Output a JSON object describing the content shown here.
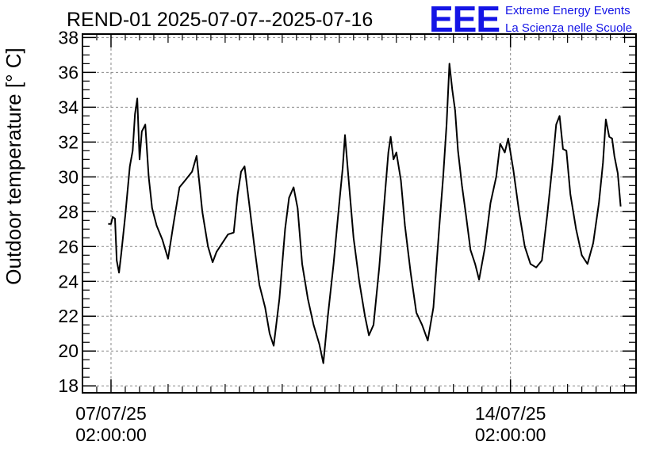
{
  "chart_data": {
    "type": "line",
    "title": "REND-01 2025-07-07--2025-07-16",
    "xlabel": "",
    "ylabel": "Outdoor temperature [° C]",
    "ylim": [
      17.6,
      38.2
    ],
    "yticks": [
      18,
      20,
      22,
      24,
      26,
      28,
      30,
      32,
      34,
      36,
      38
    ],
    "xlim_days": [
      -0.5,
      9.2
    ],
    "xticks": [
      {
        "day": 0,
        "label_date": "07/07/25",
        "label_time": "02:00:00"
      },
      {
        "day": 7,
        "label_date": "14/07/25",
        "label_time": "02:00:00"
      }
    ],
    "grid": true,
    "series": [
      {
        "color": "#000000",
        "points": [
          [
            -0.05,
            27.3
          ],
          [
            0.0,
            27.3
          ],
          [
            0.03,
            27.7
          ],
          [
            0.07,
            27.6
          ],
          [
            0.1,
            25.2
          ],
          [
            0.14,
            24.5
          ],
          [
            0.18,
            25.6
          ],
          [
            0.25,
            27.8
          ],
          [
            0.33,
            30.6
          ],
          [
            0.38,
            31.5
          ],
          [
            0.42,
            33.6
          ],
          [
            0.46,
            34.5
          ],
          [
            0.5,
            31.0
          ],
          [
            0.54,
            32.6
          ],
          [
            0.6,
            33.0
          ],
          [
            0.66,
            30.0
          ],
          [
            0.72,
            28.2
          ],
          [
            0.8,
            27.2
          ],
          [
            0.9,
            26.4
          ],
          [
            1.0,
            25.3
          ],
          [
            1.1,
            27.4
          ],
          [
            1.2,
            29.4
          ],
          [
            1.3,
            29.8
          ],
          [
            1.42,
            30.3
          ],
          [
            1.5,
            31.2
          ],
          [
            1.6,
            28.0
          ],
          [
            1.7,
            26.0
          ],
          [
            1.78,
            25.1
          ],
          [
            1.85,
            25.7
          ],
          [
            1.95,
            26.2
          ],
          [
            2.05,
            26.7
          ],
          [
            2.15,
            26.8
          ],
          [
            2.22,
            29.0
          ],
          [
            2.28,
            30.3
          ],
          [
            2.34,
            30.6
          ],
          [
            2.42,
            28.5
          ],
          [
            2.52,
            25.8
          ],
          [
            2.6,
            23.8
          ],
          [
            2.7,
            22.5
          ],
          [
            2.78,
            21.0
          ],
          [
            2.85,
            20.3
          ],
          [
            2.95,
            23.0
          ],
          [
            3.05,
            27.0
          ],
          [
            3.12,
            28.8
          ],
          [
            3.2,
            29.4
          ],
          [
            3.27,
            28.2
          ],
          [
            3.35,
            25.0
          ],
          [
            3.45,
            23.0
          ],
          [
            3.55,
            21.5
          ],
          [
            3.65,
            20.4
          ],
          [
            3.72,
            19.3
          ],
          [
            3.8,
            22.0
          ],
          [
            3.9,
            25.0
          ],
          [
            4.0,
            28.5
          ],
          [
            4.06,
            30.5
          ],
          [
            4.1,
            32.4
          ],
          [
            4.16,
            30.0
          ],
          [
            4.25,
            26.5
          ],
          [
            4.35,
            24.0
          ],
          [
            4.45,
            22.0
          ],
          [
            4.52,
            20.9
          ],
          [
            4.6,
            21.5
          ],
          [
            4.7,
            24.8
          ],
          [
            4.8,
            29.0
          ],
          [
            4.86,
            31.4
          ],
          [
            4.9,
            32.3
          ],
          [
            4.95,
            31.0
          ],
          [
            5.0,
            31.4
          ],
          [
            5.08,
            29.8
          ],
          [
            5.15,
            27.2
          ],
          [
            5.25,
            24.5
          ],
          [
            5.35,
            22.2
          ],
          [
            5.45,
            21.5
          ],
          [
            5.55,
            20.6
          ],
          [
            5.65,
            22.5
          ],
          [
            5.75,
            27.0
          ],
          [
            5.82,
            30.0
          ],
          [
            5.88,
            33.0
          ],
          [
            5.93,
            36.5
          ],
          [
            5.98,
            35.0
          ],
          [
            6.03,
            33.8
          ],
          [
            6.08,
            31.5
          ],
          [
            6.15,
            29.5
          ],
          [
            6.22,
            27.8
          ],
          [
            6.3,
            25.8
          ],
          [
            6.38,
            25.0
          ],
          [
            6.45,
            24.1
          ],
          [
            6.55,
            25.9
          ],
          [
            6.65,
            28.5
          ],
          [
            6.75,
            30.0
          ],
          [
            6.82,
            31.9
          ],
          [
            6.9,
            31.4
          ],
          [
            6.96,
            32.2
          ],
          [
            7.05,
            30.4
          ],
          [
            7.15,
            28.0
          ],
          [
            7.25,
            26.0
          ],
          [
            7.35,
            25.0
          ],
          [
            7.45,
            24.8
          ],
          [
            7.55,
            25.2
          ],
          [
            7.65,
            28.0
          ],
          [
            7.73,
            30.5
          ],
          [
            7.8,
            33.0
          ],
          [
            7.86,
            33.5
          ],
          [
            7.92,
            31.6
          ],
          [
            7.98,
            31.5
          ],
          [
            8.05,
            29.0
          ],
          [
            8.15,
            27.0
          ],
          [
            8.25,
            25.5
          ],
          [
            8.35,
            25.0
          ],
          [
            8.45,
            26.2
          ],
          [
            8.55,
            28.5
          ],
          [
            8.62,
            30.8
          ],
          [
            8.67,
            33.3
          ],
          [
            8.73,
            32.3
          ],
          [
            8.78,
            32.2
          ],
          [
            8.82,
            31.2
          ],
          [
            8.88,
            30.2
          ],
          [
            8.93,
            28.3
          ]
        ]
      }
    ]
  },
  "logo": {
    "mark": "EEE",
    "line1": "Extreme Energy Events",
    "line2": "La Scienza nelle Scuole"
  }
}
